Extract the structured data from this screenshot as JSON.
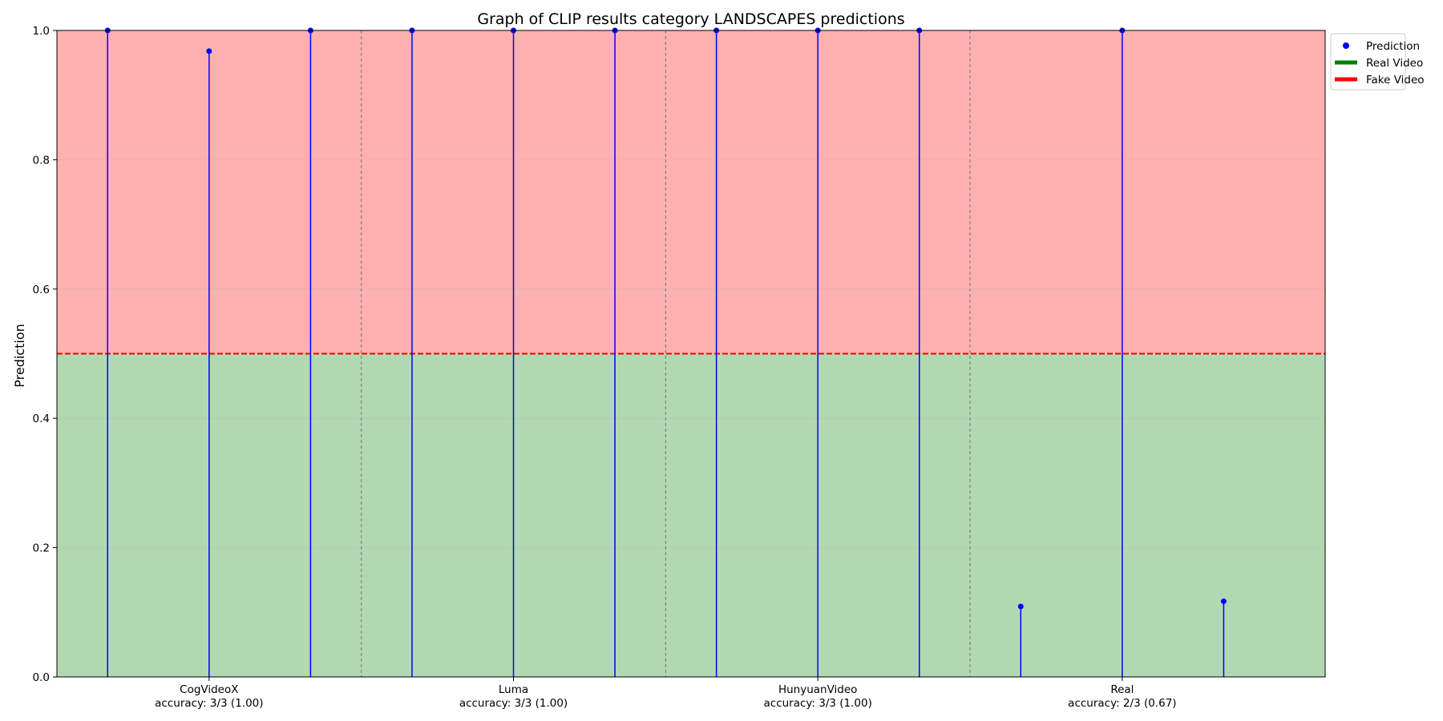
{
  "chart_data": {
    "type": "stem",
    "title": "Graph of CLIP results category LANDSCAPES predictions",
    "ylabel": "Prediction",
    "xlabel": "",
    "ylim": [
      0,
      1
    ],
    "yticks": [
      "0.0",
      "0.2",
      "0.4",
      "0.6",
      "0.8",
      "1.0"
    ],
    "threshold": 0.5,
    "grid": true,
    "legend_position": "outside top-right",
    "groups": [
      {
        "name": "CogVideoX",
        "accuracy_label": "accuracy: 3/3 (1.00)"
      },
      {
        "name": "Luma",
        "accuracy_label": "accuracy: 3/3 (1.00)"
      },
      {
        "name": "HunyuanVideo",
        "accuracy_label": "accuracy: 3/3 (1.00)"
      },
      {
        "name": "Real",
        "accuracy_label": "accuracy: 2/3 (0.67)"
      }
    ],
    "series": [
      {
        "name": "Prediction",
        "points": [
          {
            "group": "CogVideoX",
            "value": 1.0
          },
          {
            "group": "CogVideoX",
            "value": 0.968
          },
          {
            "group": "CogVideoX",
            "value": 1.0
          },
          {
            "group": "Luma",
            "value": 1.0
          },
          {
            "group": "Luma",
            "value": 1.0
          },
          {
            "group": "Luma",
            "value": 1.0
          },
          {
            "group": "HunyuanVideo",
            "value": 1.0
          },
          {
            "group": "HunyuanVideo",
            "value": 1.0
          },
          {
            "group": "HunyuanVideo",
            "value": 1.0
          },
          {
            "group": "Real",
            "value": 0.109
          },
          {
            "group": "Real",
            "value": 1.0
          },
          {
            "group": "Real",
            "value": 0.117
          }
        ]
      }
    ],
    "legend": [
      {
        "label": "Prediction",
        "kind": "dot",
        "color": "#0000ff"
      },
      {
        "label": "Real Video",
        "kind": "line",
        "color": "#008000"
      },
      {
        "label": "Fake Video",
        "kind": "line",
        "color": "#ff0000"
      }
    ],
    "colors": {
      "fake_region": "#ffb1b1",
      "real_region": "#b2d8b2",
      "stem": "#0000ff",
      "threshold": "#ff0000",
      "separator": "#808080"
    }
  }
}
